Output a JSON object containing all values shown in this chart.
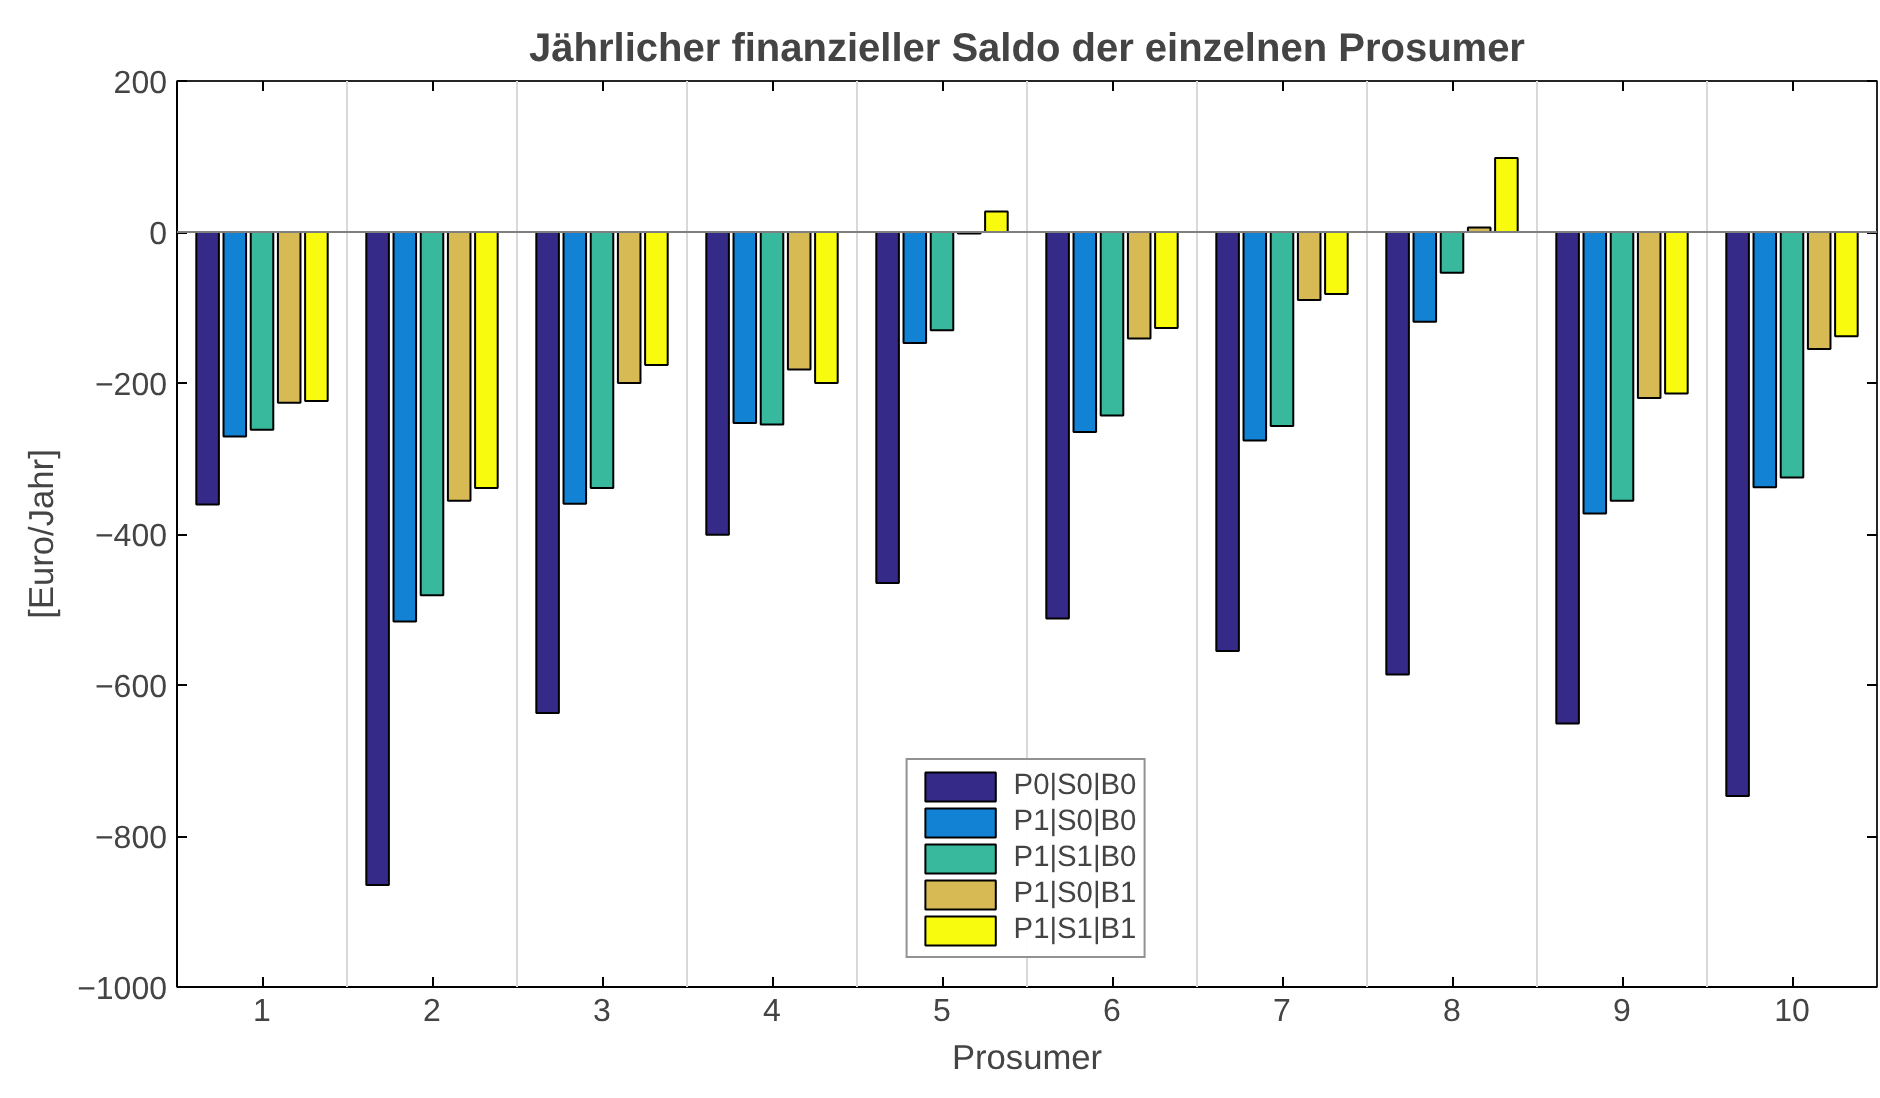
{
  "chart_data": {
    "type": "bar",
    "title": "Jährlicher finanzieller Saldo der einzelnen Prosumer",
    "xlabel": "Prosumer",
    "ylabel": "[Euro/Jahr]",
    "categories": [
      "1",
      "2",
      "3",
      "4",
      "5",
      "6",
      "7",
      "8",
      "9",
      "10"
    ],
    "series": [
      {
        "name": "P0|S0|B0",
        "color": "#352a87",
        "values": [
          -361,
          -865,
          -637,
          -401,
          -465,
          -512,
          -555,
          -586,
          -651,
          -747
        ]
      },
      {
        "name": "P1|S0|B0",
        "color": "#1283d4",
        "values": [
          -271,
          -516,
          -360,
          -253,
          -147,
          -265,
          -276,
          -119,
          -373,
          -338
        ]
      },
      {
        "name": "P1|S1|B0",
        "color": "#38b99e",
        "values": [
          -262,
          -481,
          -339,
          -255,
          -130,
          -243,
          -257,
          -54,
          -356,
          -325
        ]
      },
      {
        "name": "P1|S0|B1",
        "color": "#d7ba53",
        "values": [
          -226,
          -356,
          -200,
          -182,
          -2,
          -141,
          -90,
          6,
          -220,
          -155
        ]
      },
      {
        "name": "P1|S1|B1",
        "color": "#f9fb0e",
        "values": [
          -224,
          -339,
          -176,
          -200,
          27,
          -127,
          -82,
          98,
          -214,
          -138
        ]
      }
    ],
    "ylim": [
      -1000,
      200
    ],
    "yticks": [
      -1000,
      -800,
      -600,
      -400,
      -200,
      0,
      200
    ],
    "grid": "x",
    "legend": "bottom"
  }
}
